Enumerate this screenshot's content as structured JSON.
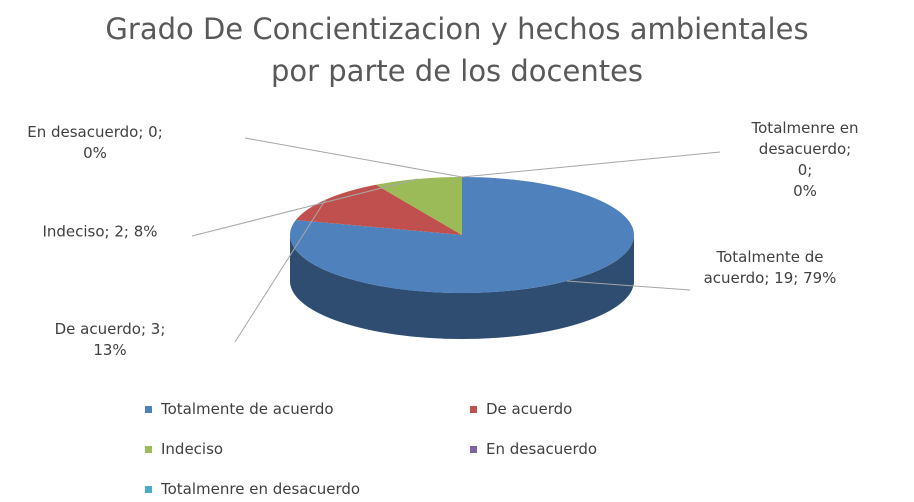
{
  "chart_data": {
    "type": "pie",
    "title": "Grado De Concientizacion y hechos ambientales\npor parte de los docentes",
    "categories": [
      "Totalmente de acuerdo",
      "De acuerdo",
      "Indeciso",
      "En desacuerdo",
      "Totalmenre en desacuerdo"
    ],
    "values": [
      19,
      3,
      2,
      0,
      0
    ],
    "value_labels": [
      "Totalmente de\nacuerdo; 19; 79%",
      "De acuerdo; 3;\n13%",
      "Indeciso; 2; 8%",
      "En desacuerdo; 0;\n0%",
      "Totalmenre en\ndesacuerdo; 0;\n0%"
    ],
    "colors": [
      "#4f81bd",
      "#c0504d",
      "#9bbb59",
      "#8064a2",
      "#4bacc6"
    ],
    "legend": "bottom"
  }
}
